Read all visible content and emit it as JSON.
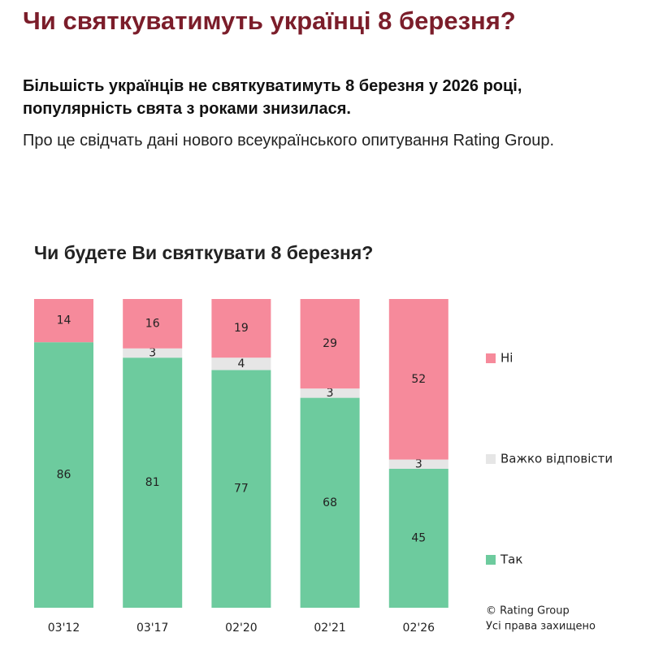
{
  "header": {
    "title": "Чи святкуватимуть українці 8 березня?",
    "lead": "Більшість українців не святкуватимуть 8 березня у 2026 році, популярність свята з роками знизилася.",
    "text": "Про це свідчать дані нового всеукраїнського опитування Rating Group."
  },
  "chart_data": {
    "type": "stacked-bar",
    "title": "Чи будете Ви святкувати 8 березня?",
    "categories": [
      "03'12",
      "03'17",
      "02'20",
      "02'21",
      "02'26"
    ],
    "series": [
      {
        "name": "Так",
        "color": "#6dcb9e",
        "values": [
          86,
          81,
          77,
          68,
          45
        ]
      },
      {
        "name": "Важко відповісти",
        "color": "#e6e6e6",
        "values": [
          null,
          3,
          4,
          3,
          3
        ]
      },
      {
        "name": "Ні",
        "color": "#f68a9b",
        "values": [
          14,
          16,
          19,
          29,
          52
        ]
      }
    ],
    "ylim": [
      0,
      100
    ],
    "legend": "right",
    "credit": [
      "© Rating Group",
      "Усі права захищено"
    ]
  }
}
